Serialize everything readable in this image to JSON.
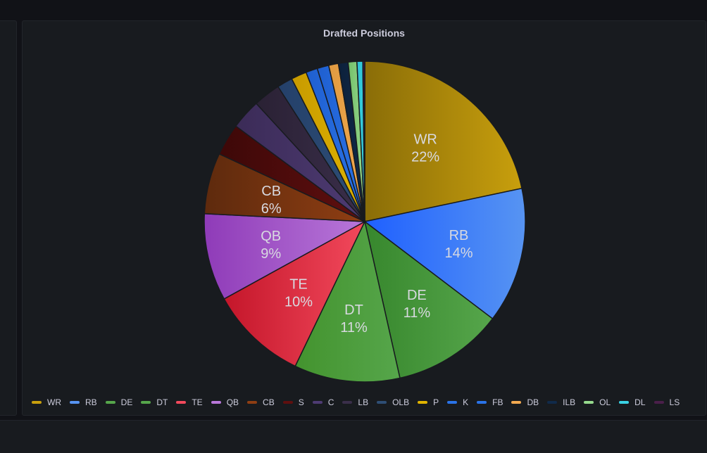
{
  "panel": {
    "title": "Drafted Positions"
  },
  "chart_data": {
    "type": "pie",
    "title": "Drafted Positions",
    "legend_position": "bottom",
    "series": [
      {
        "name": "WR",
        "value": 22.2,
        "label": "22%",
        "color": "#c89f0d",
        "color2": "#8a6d08"
      },
      {
        "name": "RB",
        "value": 14.0,
        "label": "14%",
        "color": "#5794f2",
        "color2": "#1f60ff"
      },
      {
        "name": "DE",
        "value": 11.4,
        "label": "11%",
        "color": "#56a64b",
        "color2": "#37872d"
      },
      {
        "name": "DT",
        "value": 10.9,
        "label": "11%",
        "color": "#56a64b",
        "color2": "#43932e"
      },
      {
        "name": "TE",
        "value": 10.1,
        "label": "10%",
        "color": "#f2495c",
        "color2": "#c4162a"
      },
      {
        "name": "QB",
        "value": 9.0,
        "label": "9%",
        "color": "#b877d9",
        "color2": "#8f3bb8"
      },
      {
        "name": "CB",
        "value": 6.3,
        "label": "6%",
        "color": "#8f3e13",
        "color2": "#5e2a0d"
      },
      {
        "name": "S",
        "value": 3.3,
        "label": "",
        "color": "#5f0f0f",
        "color2": "#3d0808"
      },
      {
        "name": "C",
        "value": 3.1,
        "label": "",
        "color": "#4e3b73",
        "color2": "#3b2b57"
      },
      {
        "name": "LB",
        "value": 2.8,
        "label": "",
        "color": "#3a2e4a",
        "color2": "#2a2134"
      },
      {
        "name": "OLB",
        "value": 1.6,
        "label": "",
        "color": "#2e4e75",
        "color2": "#24406a"
      },
      {
        "name": "P",
        "value": 1.6,
        "label": "",
        "color": "#e0b400",
        "color2": "#c79a00"
      },
      {
        "name": "K",
        "value": 1.2,
        "label": "",
        "color": "#2a73e8",
        "color2": "#1f5fcf"
      },
      {
        "name": "FB",
        "value": 1.2,
        "label": "",
        "color": "#2a73e8",
        "color2": "#1f5fcf"
      },
      {
        "name": "DB",
        "value": 1.0,
        "label": "",
        "color": "#f2a950",
        "color2": "#e09a40"
      },
      {
        "name": "ILB",
        "value": 1.0,
        "label": "",
        "color": "#102a4a",
        "color2": "#0c203a"
      },
      {
        "name": "OL",
        "value": 0.9,
        "label": "",
        "color": "#96d98d",
        "color2": "#73bf69"
      },
      {
        "name": "DL",
        "value": 0.6,
        "label": "",
        "color": "#3ad2e3",
        "color2": "#2bbdd0"
      },
      {
        "name": "LS",
        "value": 0.2,
        "label": "",
        "color": "#4a1f4a",
        "color2": "#3a173a"
      }
    ]
  }
}
